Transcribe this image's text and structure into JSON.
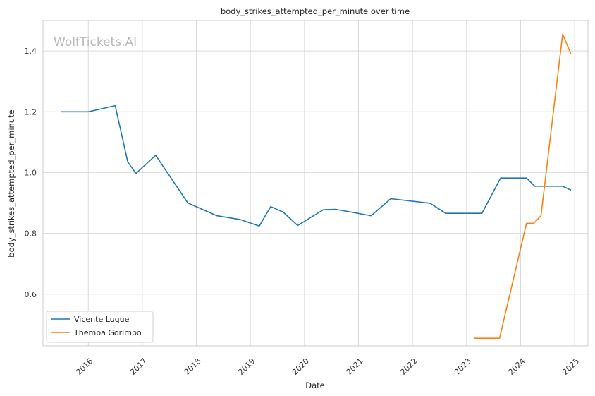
{
  "chart_data": {
    "type": "line",
    "title": "body_strikes_attempted_per_minute over time",
    "xlabel": "Date",
    "ylabel": "body_strikes_attempted_per_minute",
    "watermark": "WolfTickets.AI",
    "x_ticks": [
      "2016",
      "2017",
      "2018",
      "2019",
      "2020",
      "2021",
      "2022",
      "2023",
      "2024",
      "2025"
    ],
    "y_ticks": [
      "0.6",
      "0.8",
      "1.0",
      "1.2",
      "1.4"
    ],
    "y_tick_values": [
      0.6,
      0.8,
      1.0,
      1.2,
      1.4
    ],
    "xlim": [
      "2015-03-01",
      "2025-04-01"
    ],
    "ylim": [
      0.43,
      1.5
    ],
    "grid": true,
    "legend_position": "lower-left",
    "series": [
      {
        "name": "Vicente Luque",
        "color": "#1f77b4",
        "x": [
          "2015-07-01",
          "2016-01-01",
          "2016-07-01",
          "2016-09-24",
          "2016-11-19",
          "2017-04-01",
          "2017-11-04",
          "2018-05-19",
          "2018-10-27",
          "2019-03-02",
          "2019-05-18",
          "2019-08-10",
          "2019-11-16",
          "2020-05-09",
          "2020-08-01",
          "2021-03-27",
          "2021-08-07",
          "2022-04-30",
          "2022-08-13",
          "2023-02-25",
          "2023-04-15",
          "2023-08-19",
          "2024-02-10",
          "2024-04-06",
          "2024-10-12",
          "2024-12-07"
        ],
        "y": [
          1.2,
          1.2,
          1.22,
          1.035,
          0.997,
          1.057,
          0.9,
          0.858,
          0.845,
          0.824,
          0.888,
          0.87,
          0.826,
          0.878,
          0.879,
          0.858,
          0.914,
          0.899,
          0.866,
          0.866,
          0.866,
          0.982,
          0.982,
          0.955,
          0.955,
          0.942
        ]
      },
      {
        "name": "Themba Gorimbo",
        "color": "#ff7f0e",
        "x": [
          "2023-02-18",
          "2023-08-12",
          "2024-02-10",
          "2024-03-30",
          "2024-05-18",
          "2024-10-12",
          "2024-12-07"
        ],
        "y": [
          0.455,
          0.455,
          0.833,
          0.833,
          0.858,
          1.455,
          1.39
        ]
      }
    ]
  }
}
